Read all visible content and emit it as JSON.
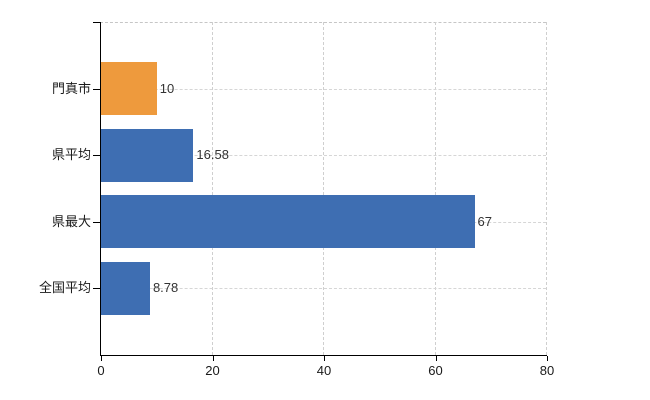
{
  "chart_data": {
    "type": "bar",
    "orientation": "horizontal",
    "title": "",
    "categories": [
      "門真市",
      "県平均",
      "県最大",
      "全国平均"
    ],
    "values": [
      10,
      16.58,
      67,
      8.78
    ],
    "value_labels": [
      "10",
      "16.58",
      "67",
      "8.78"
    ],
    "bar_colors": [
      "#ee9a3d",
      "#3e6eb2",
      "#3e6eb2",
      "#3e6eb2"
    ],
    "x_ticks": [
      0,
      20,
      40,
      60,
      80
    ],
    "x_tick_labels": [
      "0",
      "20",
      "40",
      "60",
      "80"
    ],
    "xlim": [
      0,
      80
    ],
    "grid": true,
    "legend": "none",
    "colors": {
      "bar_orange": "#ee9a3d",
      "bar_blue": "#3e6eb2",
      "axis": "#000000",
      "gridline": "#d6d6d6",
      "value_text": "#333333",
      "label_text": "#1a1a1a",
      "background": "#ffffff"
    }
  }
}
